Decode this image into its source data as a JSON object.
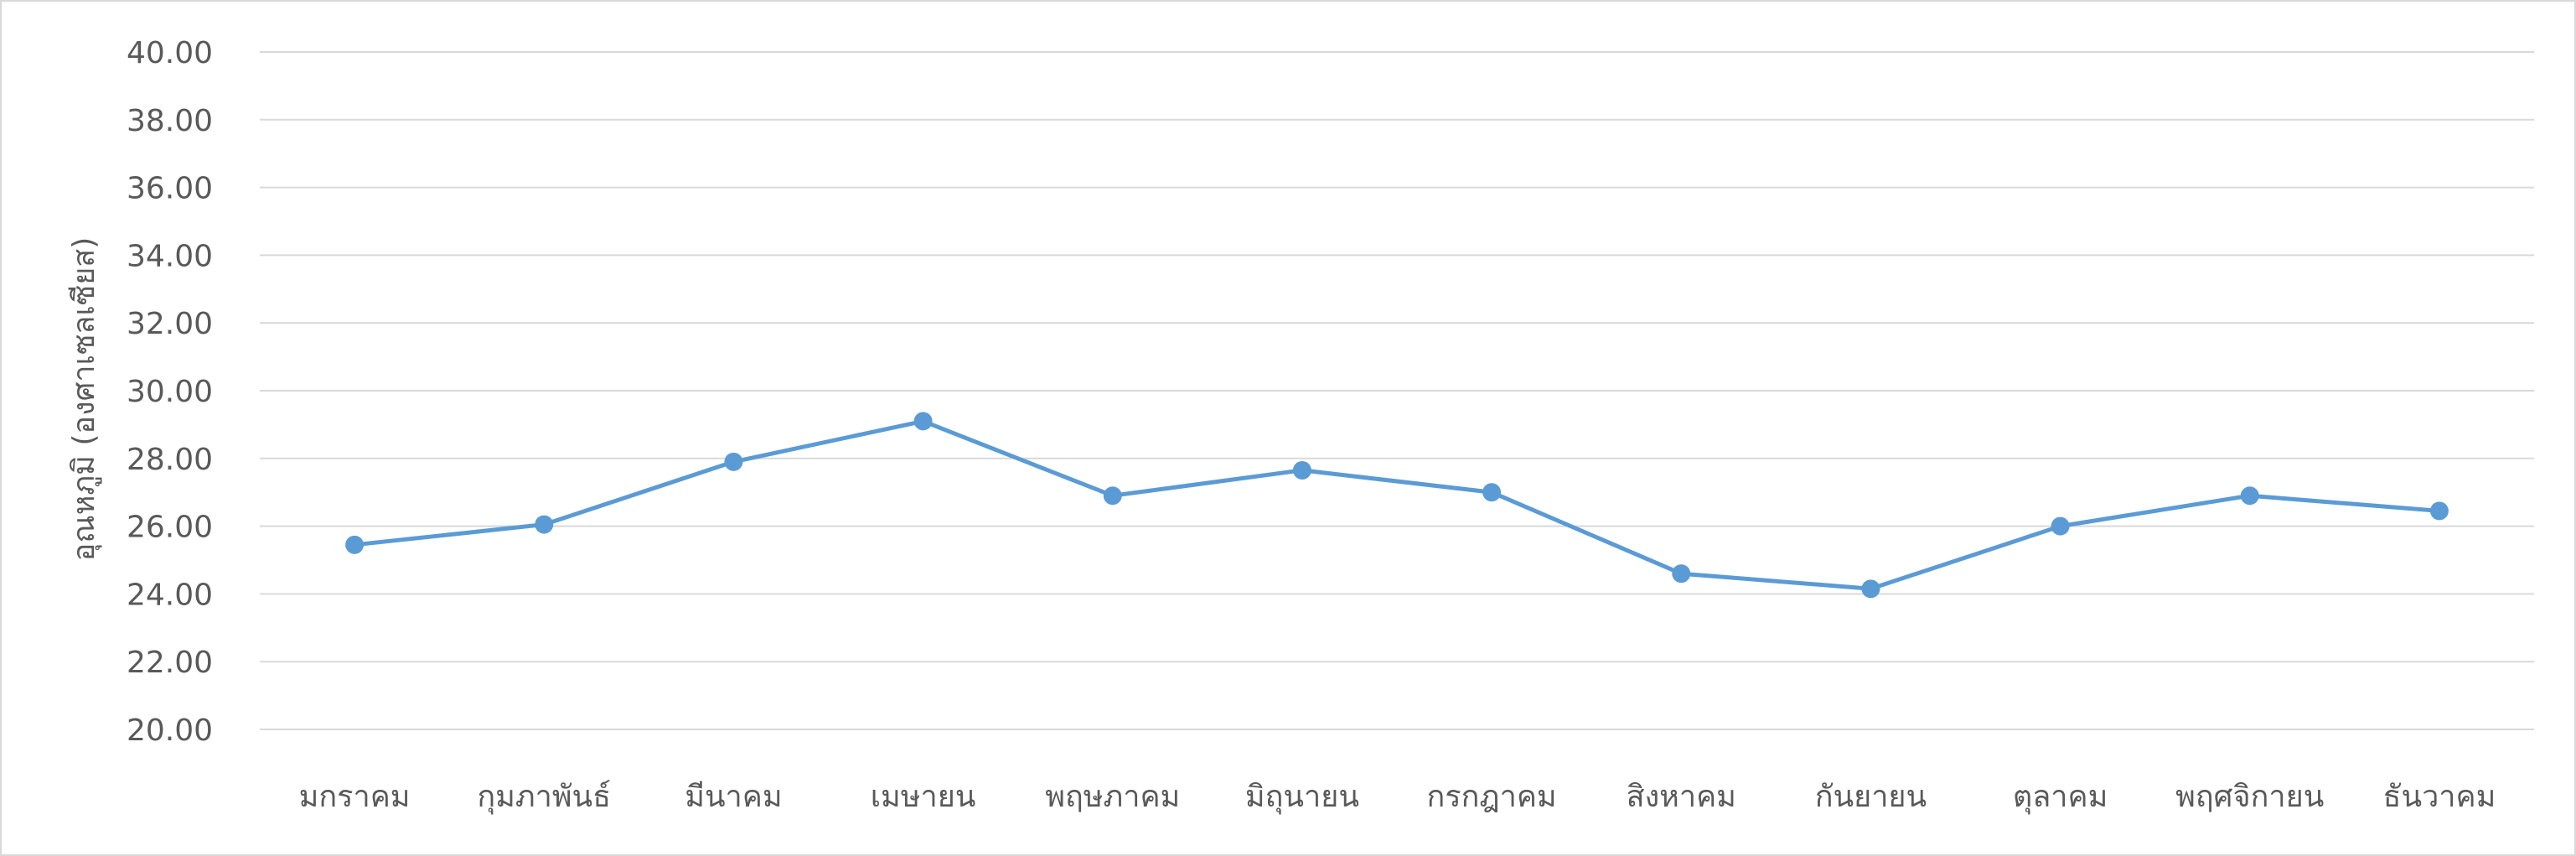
{
  "chart_data": {
    "type": "line",
    "title": "",
    "xlabel": "",
    "ylabel": "อุณหภูมิ (องศาเซลเซียส)",
    "categories": [
      "มกราคม",
      "กุมภาพันธ์",
      "มีนาคม",
      "เมษายน",
      "พฤษภาคม",
      "มิถุนายน",
      "กรกฎาคม",
      "สิงหาคม",
      "กันยายน",
      "ตุลาคม",
      "พฤศจิกายน",
      "ธันวาคม"
    ],
    "series": [
      {
        "values": [
          25.45,
          26.05,
          27.9,
          29.1,
          26.9,
          27.65,
          27.0,
          24.6,
          24.15,
          26.0,
          26.9,
          26.45
        ],
        "color": "#5b9bd5"
      }
    ],
    "ylim": [
      20,
      40
    ],
    "yticks": [
      "20.00",
      "22.00",
      "24.00",
      "26.00",
      "28.00",
      "30.00",
      "32.00",
      "34.00",
      "36.00",
      "38.00",
      "40.00"
    ],
    "grid": true,
    "legend": "none"
  }
}
